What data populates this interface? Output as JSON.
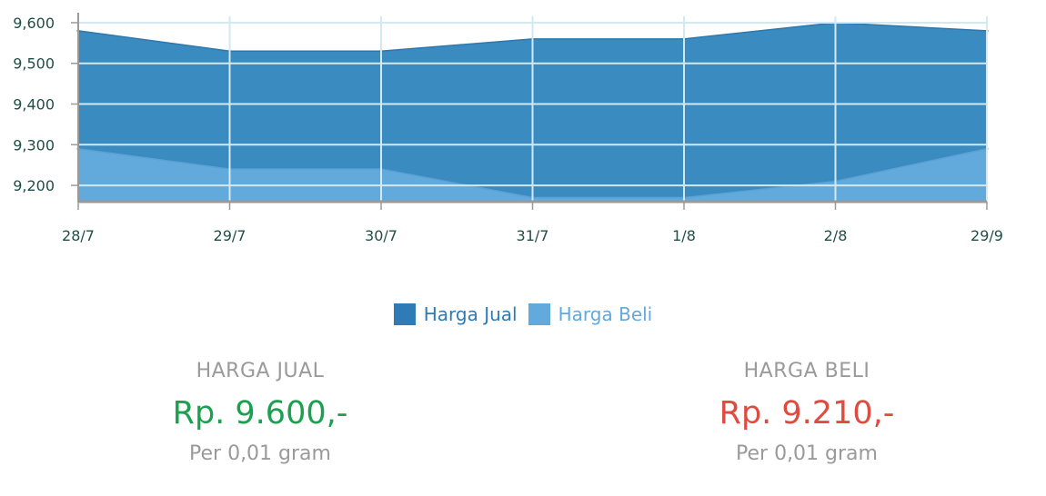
{
  "chart_data": {
    "type": "area",
    "categories": [
      "28/7",
      "29/7",
      "30/7",
      "31/7",
      "1/8",
      "2/8",
      "29/9"
    ],
    "series": [
      {
        "name": "Harga Jual",
        "values": [
          9580,
          9530,
          9530,
          9560,
          9560,
          9600,
          9580
        ],
        "color": "#3a8bc0"
      },
      {
        "name": "Harga Beli",
        "values": [
          9290,
          9240,
          9240,
          9170,
          9170,
          9210,
          9290
        ],
        "color": "#62a9dc"
      }
    ],
    "yticks": [
      "9,600",
      "9,500",
      "9,400",
      "9,300",
      "9,200"
    ],
    "ylim": [
      9160,
      9620
    ],
    "grid": true,
    "legend_position": "bottom-center"
  },
  "legend": {
    "jual_label": "Harga Jual",
    "beli_label": "Harga Beli",
    "jual_color": "#2e7bb5",
    "beli_color": "#62a9dc"
  },
  "summary": {
    "jual": {
      "label": "HARGA JUAL",
      "price": "Rp. 9.600,-",
      "unit": "Per 0,01 gram",
      "price_color": "#1aa150"
    },
    "beli": {
      "label": "HARGA BELI",
      "price": "Rp. 9.210,-",
      "unit": "Per 0,01 gram",
      "price_color": "#e04a3f"
    }
  }
}
